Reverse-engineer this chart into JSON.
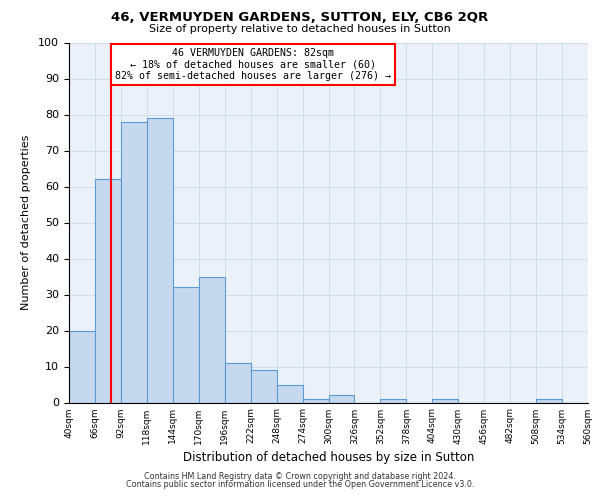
{
  "title": "46, VERMUYDEN GARDENS, SUTTON, ELY, CB6 2QR",
  "subtitle": "Size of property relative to detached houses in Sutton",
  "xlabel": "Distribution of detached houses by size in Sutton",
  "ylabel": "Number of detached properties",
  "bin_edges": [
    40,
    66,
    92,
    118,
    144,
    170,
    196,
    222,
    248,
    274,
    300,
    326,
    352,
    378,
    404,
    430,
    456,
    482,
    508,
    534,
    560
  ],
  "bar_heights": [
    20,
    62,
    78,
    79,
    32,
    35,
    11,
    9,
    5,
    1,
    2,
    0,
    1,
    0,
    1,
    0,
    0,
    0,
    1,
    0
  ],
  "bar_color": "#c5d8ed",
  "bar_edge_color": "#5b9bd5",
  "vline_x": 82,
  "vline_color": "red",
  "annotation_title": "46 VERMUYDEN GARDENS: 82sqm",
  "annotation_line1": "← 18% of detached houses are smaller (60)",
  "annotation_line2": "82% of semi-detached houses are larger (276) →",
  "annotation_box_color": "red",
  "ylim": [
    0,
    100
  ],
  "yticks": [
    0,
    10,
    20,
    30,
    40,
    50,
    60,
    70,
    80,
    90,
    100
  ],
  "tick_labels": [
    "40sqm",
    "66sqm",
    "92sqm",
    "118sqm",
    "144sqm",
    "170sqm",
    "196sqm",
    "222sqm",
    "248sqm",
    "274sqm",
    "300sqm",
    "326sqm",
    "352sqm",
    "378sqm",
    "404sqm",
    "430sqm",
    "456sqm",
    "482sqm",
    "508sqm",
    "534sqm",
    "560sqm"
  ],
  "footer1": "Contains HM Land Registry data © Crown copyright and database right 2024.",
  "footer2": "Contains public sector information licensed under the Open Government Licence v3.0.",
  "grid_color": "#d0dce8",
  "bg_color": "#eaf1f8",
  "fig_bg_color": "#ffffff"
}
